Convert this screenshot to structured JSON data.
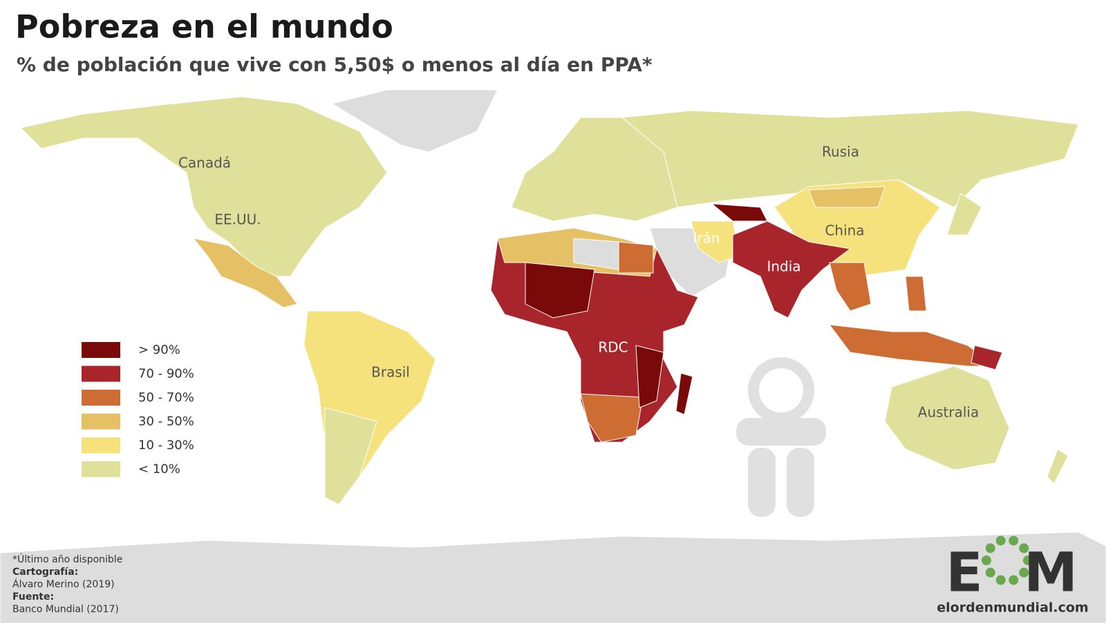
{
  "header": {
    "title": "Pobreza en el mundo",
    "subtitle": "% de población que vive con 5,50$ o menos al día en PPA*"
  },
  "legend": {
    "items": [
      {
        "label": "> 90%",
        "color": "#7a0a0a"
      },
      {
        "label": "70 - 90%",
        "color": "#a8262b"
      },
      {
        "label": "50 - 70%",
        "color": "#cd6d34"
      },
      {
        "label": "30 - 50%",
        "color": "#e6c064"
      },
      {
        "label": "10 - 30%",
        "color": "#f6e27c"
      },
      {
        "label": "< 10%",
        "color": "#dfe09a"
      }
    ]
  },
  "map_labels": [
    {
      "label": "Canadá"
    },
    {
      "label": "EE.UU."
    },
    {
      "label": "Brasil"
    },
    {
      "label": "Rusia"
    },
    {
      "label": "China"
    },
    {
      "label": "Irán"
    },
    {
      "label": "India"
    },
    {
      "label": "RDC"
    },
    {
      "label": "Australia"
    }
  ],
  "footer": {
    "note": "*Último año disponible",
    "cartography_heading": "Cartografía:",
    "cartography": "Álvaro Merino (2019)",
    "source_heading": "Fuente:",
    "source": "Banco Mundial (2017)"
  },
  "logo": {
    "letters": [
      "E",
      "M"
    ],
    "site": "elordenmundial.com"
  }
}
